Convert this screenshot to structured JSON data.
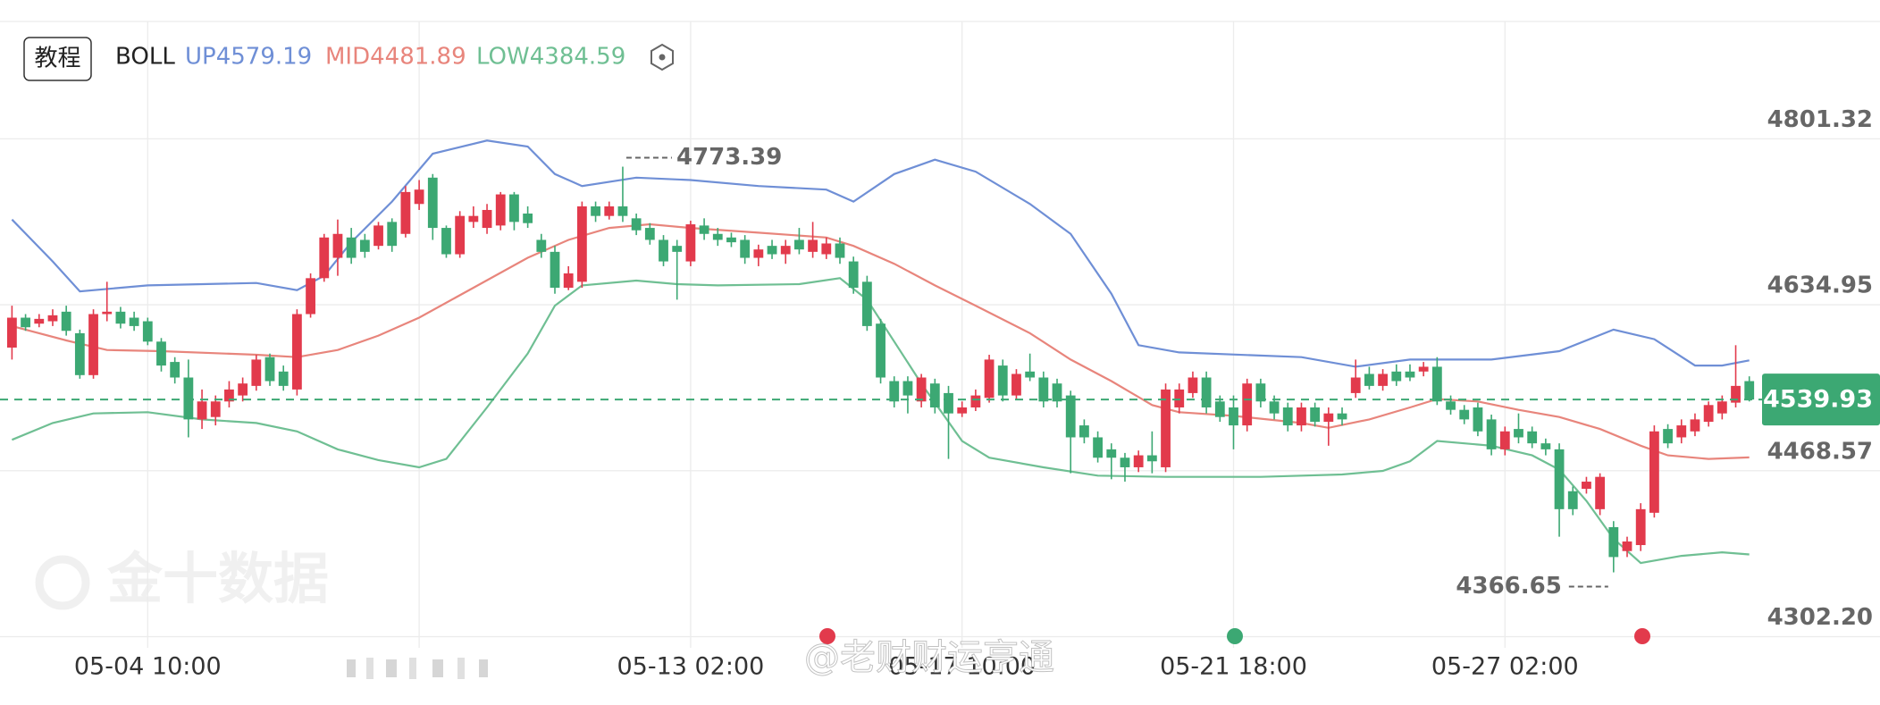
{
  "chart_data": {
    "type": "candlestick",
    "header": {
      "button": "教程",
      "indicator": "BOLL",
      "up": "UP4579.19",
      "mid": "MID4481.89",
      "low": "LOW4384.59"
    },
    "watermark": "金十数据",
    "overlay_text": "@老财财运亨通",
    "categories": [
      null,
      null,
      null,
      null,
      null,
      null,
      null,
      null,
      null,
      null,
      "05-04 10:00",
      null,
      null,
      null,
      null,
      null,
      null,
      null,
      null,
      null,
      null,
      null,
      null,
      null,
      null,
      null,
      null,
      null,
      null,
      null,
      null,
      null,
      null,
      null,
      null,
      null,
      null,
      null,
      null,
      null,
      null,
      null,
      null,
      null,
      null,
      null,
      null,
      null,
      null,
      null,
      "05-13 02:00",
      null,
      null,
      null,
      null,
      null,
      null,
      null,
      null,
      null,
      null,
      null,
      null,
      null,
      null,
      null,
      null,
      null,
      null,
      null,
      "05-17 10:00",
      null,
      null,
      null,
      null,
      null,
      null,
      null,
      null,
      null,
      null,
      null,
      null,
      null,
      null,
      null,
      null,
      null,
      null,
      null,
      "05-21 18:00",
      null,
      null,
      null,
      null,
      null,
      null,
      null,
      null,
      null,
      null,
      null,
      null,
      null,
      null,
      null,
      null,
      null,
      null,
      null,
      "05-27 02:00",
      null,
      null,
      null,
      null,
      null,
      null,
      null,
      null,
      null,
      null,
      null,
      null,
      null,
      null,
      null,
      null,
      null,
      null
    ],
    "open": [
      4592,
      4622,
      4616,
      4618.4,
      4628,
      4606.4,
      4564.4,
      4625.6,
      4628,
      4622,
      4618.4,
      4598,
      4577.6,
      4562,
      4520,
      4522.4,
      4538,
      4544,
      4553.6,
      4582.4,
      4568,
      4550,
      4625.6,
      4661.6,
      4682,
      4702.4,
      4700,
      4694,
      4718,
      4706,
      4736,
      4762.4,
      4712,
      4685.6,
      4718,
      4712,
      4714.4,
      4745.6,
      4726.4,
      4700,
      4688,
      4652,
      4658,
      4733.6,
      4724,
      4733.6,
      4721.6,
      4712,
      4700,
      4694,
      4678.4,
      4714.4,
      4706,
      4702.4,
      4700,
      4682,
      4694,
      4685.6,
      4700,
      4688,
      4685.6,
      4696.4,
      4678.4,
      4658,
      4616,
      4558.4,
      4558.4,
      4538,
      4556,
      4546.4,
      4526,
      4532,
      4541.6,
      4574,
      4544,
      4568,
      4562,
      4556,
      4544,
      4514,
      4502,
      4490,
      4481.6,
      4472,
      4484,
      4472,
      4532,
      4546.4,
      4562,
      4538,
      4532,
      4514,
      4556,
      4538,
      4532,
      4514,
      4532,
      4517.6,
      4526,
      4546.4,
      4565.6,
      4553.6,
      4568,
      4568,
      4568,
      4572.8,
      4538,
      4529.6,
      4532,
      4520,
      4490,
      4510.4,
      4508,
      4496,
      4490,
      4448,
      4450.4,
      4430,
      4412,
      4388,
      4394,
      4426.4,
      4510.4,
      4502,
      4508,
      4517.6,
      4526,
      4536.8,
      4558.4
    ],
    "high": [
      4634,
      4625.6,
      4625.6,
      4630.4,
      4634,
      4610,
      4630.4,
      4658,
      4632.8,
      4628,
      4622,
      4601.6,
      4582.4,
      4580,
      4550,
      4544,
      4558.4,
      4562,
      4584.8,
      4586,
      4574,
      4630.4,
      4666.4,
      4706,
      4720.4,
      4712,
      4706,
      4718,
      4721.6,
      4754,
      4760,
      4766,
      4714.4,
      4728.8,
      4733.6,
      4736,
      4748,
      4748,
      4733.6,
      4706,
      4694,
      4673.6,
      4738.4,
      4738.4,
      4738.4,
      4773.39,
      4726.4,
      4716.8,
      4704.8,
      4700,
      4719.2,
      4721.6,
      4712,
      4707.2,
      4704.8,
      4695.2,
      4700,
      4700,
      4712,
      4718,
      4702.4,
      4702.4,
      4683.2,
      4664,
      4620.8,
      4563.2,
      4563.2,
      4565.6,
      4560.8,
      4553.6,
      4538,
      4550,
      4584.8,
      4580,
      4570.4,
      4586,
      4568,
      4560.8,
      4548.8,
      4520,
      4508,
      4496,
      4486.4,
      4488.8,
      4508,
      4556,
      4556,
      4568,
      4568,
      4544,
      4544,
      4560.8,
      4560.8,
      4544,
      4536.8,
      4536.8,
      4536.8,
      4532,
      4532,
      4580,
      4572.8,
      4570.4,
      4575.2,
      4575.2,
      4577.6,
      4582.4,
      4544,
      4534.4,
      4536.8,
      4524.8,
      4512.8,
      4526,
      4512.8,
      4500.8,
      4496,
      4452.8,
      4462.4,
      4466,
      4418,
      4402.4,
      4436,
      4514,
      4515.2,
      4520,
      4526,
      4538,
      4544,
      4594.4,
      4563.2
    ],
    "low": [
      4580,
      4608.8,
      4612.4,
      4613.6,
      4604,
      4560.8,
      4560.8,
      4618.4,
      4611.2,
      4608.8,
      4594.4,
      4568,
      4556,
      4502,
      4510.4,
      4514,
      4532,
      4538,
      4548.8,
      4553.6,
      4548.8,
      4544,
      4622,
      4658,
      4664,
      4676,
      4682,
      4690.4,
      4688,
      4702.4,
      4730,
      4700,
      4682,
      4682,
      4712,
      4706,
      4709.6,
      4709.6,
      4712,
      4682,
      4646,
      4649.6,
      4652,
      4718,
      4720.4,
      4718,
      4704.8,
      4695.2,
      4673.6,
      4640,
      4673.6,
      4700,
      4694,
      4692.8,
      4676,
      4673.6,
      4680.8,
      4676,
      4685.6,
      4682,
      4680.8,
      4676,
      4646,
      4608.8,
      4556,
      4532,
      4526,
      4532,
      4526,
      4480.4,
      4522.4,
      4528.4,
      4536.8,
      4538,
      4539.2,
      4558.4,
      4532,
      4532,
      4466,
      4496,
      4476.8,
      4460,
      4457.6,
      4467.2,
      4466,
      4467.2,
      4526,
      4541.6,
      4526,
      4517.6,
      4490,
      4508,
      4532,
      4520,
      4508,
      4508,
      4512.8,
      4493.6,
      4514,
      4541.6,
      4550,
      4548.8,
      4553.6,
      4558.4,
      4563.2,
      4534.4,
      4524.8,
      4515.2,
      4503.2,
      4484,
      4484,
      4496,
      4491.2,
      4484,
      4402.4,
      4424,
      4445.6,
      4424,
      4366.65,
      4382,
      4388,
      4421.6,
      4491.2,
      4496,
      4503.2,
      4512.8,
      4520,
      4532,
      4538
    ],
    "close": [
      4622,
      4612.4,
      4620.8,
      4624.4,
      4608.8,
      4564.4,
      4625.6,
      4628,
      4616,
      4613.6,
      4598,
      4574,
      4562,
      4520,
      4538,
      4538,
      4550,
      4556,
      4580,
      4558.4,
      4553.6,
      4625.6,
      4661.6,
      4702.4,
      4706,
      4682,
      4688,
      4714.4,
      4694,
      4748,
      4750.4,
      4712,
      4685.6,
      4724,
      4724,
      4730,
      4745.6,
      4718,
      4716.8,
      4688,
      4652,
      4666.4,
      4733.6,
      4724,
      4733.6,
      4724,
      4709.6,
      4700,
      4678.4,
      4688,
      4715.6,
      4706,
      4700,
      4697.6,
      4682,
      4690.4,
      4685.6,
      4694,
      4690.4,
      4700,
      4696.4,
      4682,
      4652,
      4613.6,
      4562,
      4538,
      4544,
      4562,
      4532,
      4526,
      4532,
      4544,
      4580,
      4544,
      4565.6,
      4562,
      4538,
      4538,
      4502,
      4502,
      4481.6,
      4481.6,
      4472,
      4484,
      4478,
      4550,
      4550,
      4562,
      4532,
      4522.4,
      4514,
      4556,
      4538,
      4526,
      4514,
      4532,
      4517.6,
      4526,
      4520,
      4562,
      4553.6,
      4565.6,
      4558.4,
      4562,
      4572.8,
      4538,
      4529.6,
      4520,
      4508,
      4490,
      4508,
      4502,
      4496,
      4490,
      4430,
      4430,
      4457.6,
      4462.4,
      4382,
      4397.6,
      4430,
      4508,
      4496,
      4514,
      4520,
      4534.4,
      4538,
      4553.6,
      4539.93
    ],
    "up_color": "#e23a4c",
    "down_color": "#3ca873",
    "series": [
      {
        "color": "#6f8fd6",
        "x": [
          0,
          3,
          5,
          10,
          18,
          21,
          23,
          25,
          28,
          31,
          35,
          38,
          40,
          42,
          46,
          50,
          55,
          60,
          62,
          65,
          68,
          71,
          75,
          78,
          81,
          83,
          86,
          95,
          99,
          103,
          109,
          114,
          118,
          121,
          124,
          126,
          128
        ],
        "values": [
          4720.4,
          4678.4,
          4648.4,
          4654.4,
          4656.8,
          4649.6,
          4664,
          4697.6,
          4738.4,
          4786.4,
          4799.6,
          4793.6,
          4766,
          4754,
          4762.4,
          4760,
          4754,
          4750.4,
          4738.4,
          4766,
          4780.4,
          4768.4,
          4736,
          4706,
          4646,
          4594.4,
          4587.2,
          4582.4,
          4572.8,
          4580,
          4580,
          4588.4,
          4610,
          4600.4,
          4574,
          4574,
          4579.19
        ]
      },
      {
        "color": "#e8857c",
        "x": [
          0,
          4,
          7,
          11,
          18,
          21,
          24,
          27,
          30,
          34,
          38,
          41,
          44,
          47,
          50,
          55,
          60,
          62,
          65,
          68,
          71,
          75,
          78,
          81,
          84,
          86,
          90,
          95,
          97,
          100,
          103,
          105,
          108,
          111,
          114,
          117,
          120,
          122,
          125,
          128
        ],
        "values": [
          4613.6,
          4599.2,
          4589.6,
          4588.4,
          4584.8,
          4582.4,
          4589.6,
          4604,
          4622,
          4652,
          4682,
          4700,
          4712,
          4715.6,
          4712,
          4707.2,
          4702.4,
          4694,
          4676,
          4654.4,
          4634,
          4606.4,
          4580,
          4558.4,
          4534.4,
          4527.2,
          4523.6,
          4516.4,
          4511.6,
          4520,
          4532,
          4540.4,
          4538,
          4529.6,
          4522.4,
          4510.4,
          4493.6,
          4484,
          4480.4,
          4481.89
        ]
      },
      {
        "color": "#6fbf93",
        "x": [
          0,
          3,
          6,
          10,
          14,
          18,
          21,
          24,
          27,
          30,
          32,
          35,
          38,
          40,
          42,
          46,
          49,
          52,
          58,
          61,
          63,
          65,
          67,
          70,
          72,
          76,
          80,
          85,
          92,
          98,
          101,
          103,
          105,
          109,
          112,
          114,
          116,
          118,
          120,
          123,
          126,
          128
        ],
        "values": [
          4499.6,
          4516.4,
          4526,
          4527.2,
          4520,
          4516.4,
          4508,
          4490,
          4479.2,
          4472,
          4480.4,
          4532,
          4586,
          4634,
          4654.4,
          4659.2,
          4655.6,
          4654.4,
          4655.6,
          4661.6,
          4640,
          4598,
          4556,
          4498.4,
          4481.6,
          4472,
          4463.6,
          4462.4,
          4462.4,
          4464.8,
          4468.4,
          4478,
          4498.4,
          4493.6,
          4484,
          4469.6,
          4438.4,
          4400.4,
          4376,
          4383.2,
          4386.8,
          4384.59
        ]
      }
    ],
    "ylim": [
      4291,
      4919
    ],
    "yticks": [
      4801.32,
      4634.95,
      4468.57,
      {
        "value": 4302.2,
        "label": "4302.20"
      }
    ],
    "grid": true
  }
}
